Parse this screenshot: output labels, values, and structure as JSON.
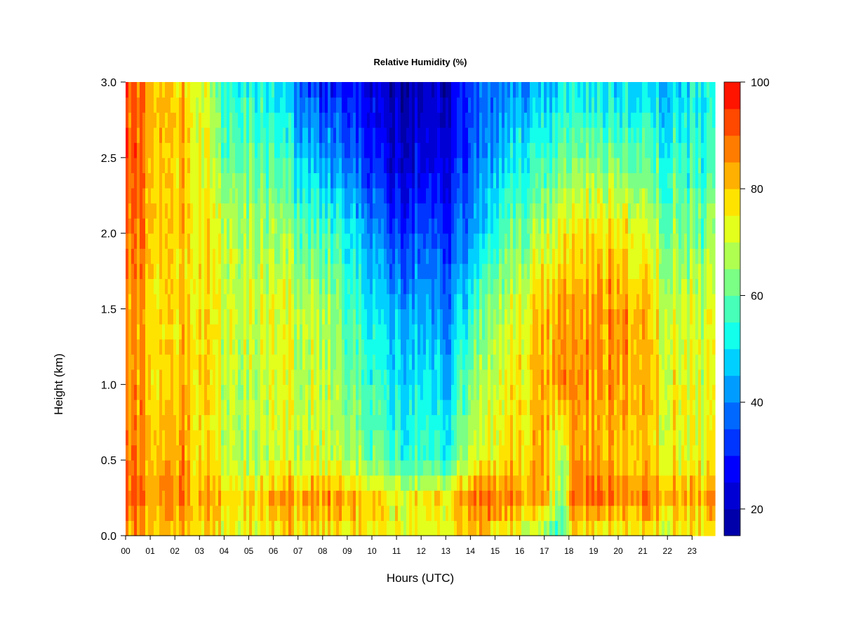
{
  "chart_data": {
    "type": "heatmap",
    "title": "Relative Humidity (%)",
    "xlabel": "Hours (UTC)",
    "ylabel": "Height (km)",
    "xlim": [
      0,
      23.8
    ],
    "ylim": [
      0.0,
      3.0
    ],
    "x_ticks": [
      "00",
      "01",
      "02",
      "03",
      "04",
      "05",
      "06",
      "07",
      "08",
      "09",
      "10",
      "11",
      "12",
      "13",
      "14",
      "15",
      "16",
      "17",
      "18",
      "19",
      "20",
      "21",
      "22",
      "23"
    ],
    "y_ticks": [
      "0.0",
      "0.5",
      "1.0",
      "1.5",
      "2.0",
      "2.5",
      "3.0"
    ],
    "colorbar": {
      "range": [
        15,
        100
      ],
      "ticks": [
        "20",
        "40",
        "60",
        "80",
        "100"
      ],
      "levels": [
        15,
        20,
        25,
        30,
        35,
        40,
        45,
        50,
        55,
        60,
        65,
        70,
        75,
        80,
        85,
        90,
        95,
        100
      ],
      "colors": [
        "#00007F",
        "#0000AA",
        "#0000D4",
        "#0000FF",
        "#0034FF",
        "#0068FF",
        "#009CFF",
        "#00D0FF",
        "#13FFEC",
        "#47FFB8",
        "#7BFF84",
        "#AFFF50",
        "#E3FF1C",
        "#FFE300",
        "#FFB000",
        "#FF7C00",
        "#FF4800",
        "#FF1400",
        "#D40000",
        "#7F0000"
      ]
    },
    "heights_km": [
      0.0,
      0.25,
      0.5,
      1.0,
      1.5,
      2.0,
      2.5,
      3.0
    ],
    "keyframes": [
      {
        "hour": 0.0,
        "rh": [
          85,
          90,
          88,
          86,
          85,
          90,
          92,
          92
        ]
      },
      {
        "hour": 1.0,
        "rh": [
          82,
          88,
          85,
          82,
          82,
          85,
          85,
          87
        ]
      },
      {
        "hour": 2.0,
        "rh": [
          80,
          88,
          84,
          80,
          78,
          80,
          80,
          80
        ]
      },
      {
        "hour": 3.0,
        "rh": [
          80,
          85,
          80,
          82,
          80,
          78,
          78,
          75
        ]
      },
      {
        "hour": 4.0,
        "rh": [
          75,
          78,
          70,
          70,
          72,
          70,
          60,
          55
        ]
      },
      {
        "hour": 5.0,
        "rh": [
          75,
          80,
          68,
          70,
          72,
          68,
          62,
          55
        ]
      },
      {
        "hour": 6.0,
        "rh": [
          75,
          82,
          70,
          72,
          72,
          66,
          58,
          50
        ]
      },
      {
        "hour": 7.0,
        "rh": [
          78,
          84,
          70,
          70,
          70,
          62,
          50,
          38
        ]
      },
      {
        "hour": 8.0,
        "rh": [
          78,
          86,
          72,
          70,
          68,
          58,
          44,
          30
        ]
      },
      {
        "hour": 9.0,
        "rh": [
          76,
          82,
          66,
          62,
          58,
          52,
          38,
          28
        ]
      },
      {
        "hour": 10.0,
        "rh": [
          74,
          78,
          60,
          55,
          48,
          40,
          28,
          22
        ]
      },
      {
        "hour": 11.0,
        "rh": [
          74,
          76,
          58,
          52,
          45,
          35,
          24,
          20
        ]
      },
      {
        "hour": 12.0,
        "rh": [
          74,
          76,
          56,
          50,
          44,
          34,
          24,
          20
        ]
      },
      {
        "hour": 13.0,
        "rh": [
          74,
          78,
          56,
          48,
          42,
          34,
          26,
          22
        ]
      },
      {
        "hour": 14.0,
        "rh": [
          78,
          86,
          68,
          62,
          52,
          40,
          34,
          32
        ]
      },
      {
        "hour": 15.0,
        "rh": [
          76,
          88,
          76,
          72,
          66,
          56,
          45,
          40
        ]
      },
      {
        "hour": 16.0,
        "rh": [
          72,
          86,
          80,
          78,
          74,
          64,
          54,
          44
        ]
      },
      {
        "hour": 17.0,
        "rh": [
          60,
          82,
          80,
          82,
          80,
          68,
          54,
          44
        ]
      },
      {
        "hour": 17.7,
        "rh": [
          55,
          60,
          62,
          84,
          84,
          74,
          60,
          48
        ]
      },
      {
        "hour": 18.0,
        "rh": [
          76,
          90,
          84,
          86,
          84,
          76,
          62,
          50
        ]
      },
      {
        "hour": 19.0,
        "rh": [
          76,
          92,
          84,
          86,
          86,
          80,
          64,
          52
        ]
      },
      {
        "hour": 20.0,
        "rh": [
          74,
          88,
          82,
          86,
          86,
          78,
          62,
          50
        ]
      },
      {
        "hour": 21.0,
        "rh": [
          74,
          86,
          78,
          80,
          78,
          70,
          58,
          46
        ]
      },
      {
        "hour": 22.0,
        "rh": [
          74,
          84,
          76,
          76,
          72,
          64,
          56,
          48
        ]
      },
      {
        "hour": 23.0,
        "rh": [
          74,
          82,
          72,
          72,
          70,
          62,
          54,
          50
        ]
      },
      {
        "hour": 23.8,
        "rh": [
          74,
          82,
          72,
          72,
          70,
          62,
          54,
          50
        ]
      }
    ]
  }
}
